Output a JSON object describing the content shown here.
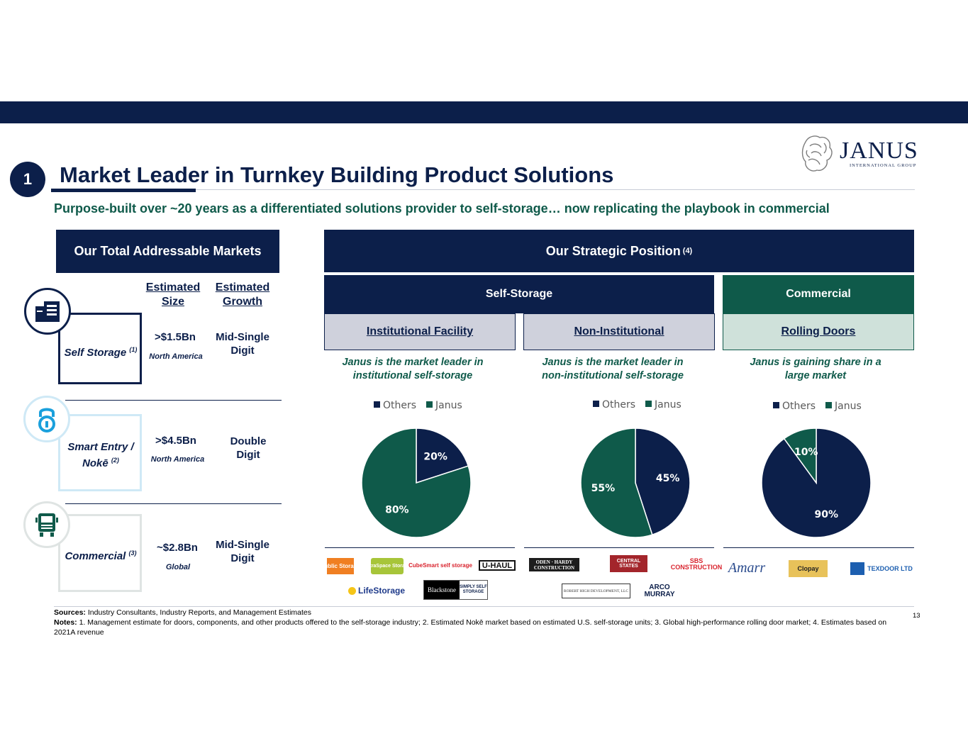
{
  "section_number": "1",
  "title": "Market Leader in Turnkey Building Product Solutions",
  "subtitle": "Purpose-built over ~20 years as a differentiated solutions provider to self-storage… now replicating the playbook in commercial",
  "logo": {
    "word": "JANUS",
    "sub": "INTERNATIONAL GROUP"
  },
  "tam": {
    "header": "Our Total Addressable Markets",
    "col_size": "Estimated Size",
    "col_growth": "Estimated Growth",
    "segments": [
      {
        "label": "Self Storage",
        "note": "(1)",
        "size": ">$1.5Bn",
        "region": "North America",
        "growth": "Mid-Single Digit",
        "icon": "building-icon"
      },
      {
        "label": "Smart Entry / Nokē",
        "note": "(2)",
        "size": ">$4.5Bn",
        "region": "North America",
        "growth": "Double Digit",
        "icon": "padlock-icon"
      },
      {
        "label": "Commercial",
        "note": "(3)",
        "size": "~$2.8Bn",
        "region": "Global",
        "growth": "Mid-Single Digit",
        "icon": "truck-icon"
      }
    ]
  },
  "strategy": {
    "header": "Our Strategic Position",
    "header_note": "(4)",
    "self_storage": "Self-Storage",
    "commercial": "Commercial",
    "columns": [
      {
        "tab": "Institutional Facility",
        "blurb": "Janus is the market leader in institutional self-storage",
        "brands": [
          "Public Storage",
          "ExtraSpace Storage",
          "CubeSmart self storage",
          "U-HAUL",
          "LifeStorage",
          "Blackstone",
          "SIMPLY SELF STORAGE"
        ]
      },
      {
        "tab": "Non-Institutional",
        "blurb": "Janus is the market leader in non-institutional self-storage",
        "brands": [
          "ODEN · HARDY CONSTRUCTION",
          "CENTRAL STATES",
          "SBS CONSTRUCTION",
          "ROBERT HIGH DEVELOPMENT, LLC",
          "ARCO MURRAY"
        ]
      },
      {
        "tab": "Rolling Doors",
        "blurb": "Janus is gaining share in a large market",
        "brands": [
          "Amarr",
          "Clopay",
          "TEXDOOR LTD"
        ]
      }
    ]
  },
  "colors": {
    "navy": "#0c1f4a",
    "green": "#0f5a4a",
    "tab_grey": "#cfd1dc",
    "tab_green": "#cfe1da"
  },
  "chart_data": [
    {
      "type": "pie",
      "categories": [
        "Others",
        "Janus"
      ],
      "values": [
        20,
        80
      ],
      "labels": [
        "20%",
        "80%"
      ],
      "legend": "top",
      "colors": [
        "#0c1f4a",
        "#0f5a4a"
      ]
    },
    {
      "type": "pie",
      "categories": [
        "Others",
        "Janus"
      ],
      "values": [
        45,
        55
      ],
      "labels": [
        "45%",
        "55%"
      ],
      "legend": "top",
      "colors": [
        "#0c1f4a",
        "#0f5a4a"
      ]
    },
    {
      "type": "pie",
      "categories": [
        "Others",
        "Janus"
      ],
      "values": [
        90,
        10
      ],
      "labels": [
        "90%",
        "10%"
      ],
      "legend": "top",
      "colors": [
        "#0c1f4a",
        "#0f5a4a"
      ]
    }
  ],
  "footer": {
    "sources_label": "Sources:",
    "sources": "Industry Consultants, Industry Reports, and Management Estimates",
    "notes_label": "Notes:",
    "notes": "1. Management estimate for doors, components, and other products offered to the self-storage industry; 2. Estimated Nokē market based on estimated U.S. self-storage units; 3. Global high-performance rolling door market; 4. Estimates based on 2021A revenue"
  },
  "page_number": "13"
}
